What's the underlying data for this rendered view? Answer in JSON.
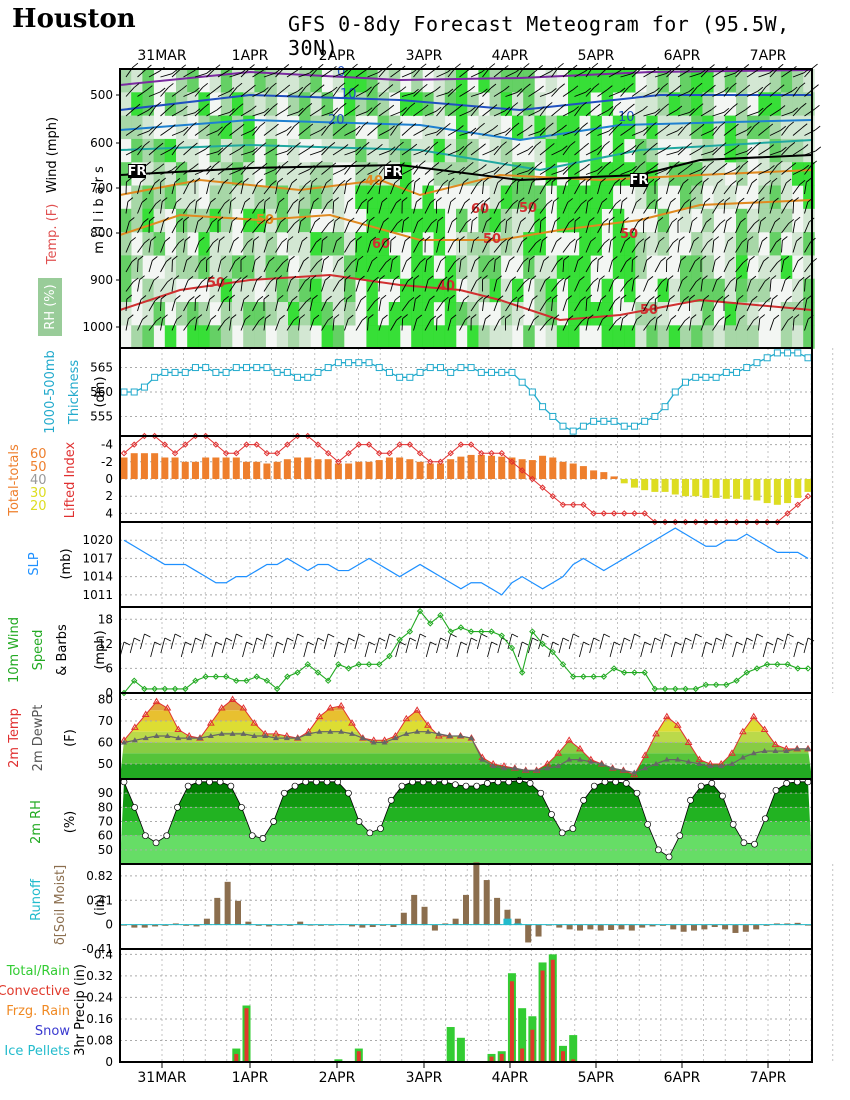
{
  "header": {
    "city": "Houston",
    "title": "GFS 0-8dy Forecast Meteogram for (95.5W, 30N)"
  },
  "dates": [
    "31MAR",
    "1APR",
    "2APR",
    "3APR",
    "4APR",
    "5APR",
    "6APR",
    "7APR"
  ],
  "panels": {
    "upper": {
      "ylabel": "millibars",
      "label_wind": "Wind (mph)",
      "label_temp": "Temp. (F)",
      "label_rh": "RH (%)",
      "yticks": [
        "500",
        "600",
        "700",
        "800",
        "900",
        "1000"
      ],
      "wind_contours": [
        "0",
        "10",
        "20",
        "10"
      ],
      "temp_contours": [
        "40",
        "50",
        "60",
        "50",
        "50",
        "40",
        "50",
        "60",
        "50",
        "50"
      ],
      "fr_marks": [
        "FR",
        "FR",
        "FR"
      ]
    },
    "thickness": {
      "label1": "1000-500mb",
      "label2": "Thickness",
      "unit": "(dm)",
      "yticks": [
        "565",
        "560",
        "555"
      ]
    },
    "stability": {
      "label_tt": "Total-totals",
      "label_li": "Lifted Index",
      "tt_legend": [
        "60",
        "50",
        "40",
        "30",
        "20"
      ],
      "yticks": [
        "-4",
        "-2",
        "0",
        "2",
        "4"
      ]
    },
    "slp": {
      "label": "SLP",
      "unit": "(mb)",
      "yticks": [
        "1020",
        "1017",
        "1014",
        "1011"
      ]
    },
    "wind10m": {
      "label1": "10m Wind",
      "label2": "Speed",
      "label3": "& Barbs",
      "unit": "(mph)",
      "yticks": [
        "18",
        "12",
        "6",
        "0"
      ]
    },
    "temp2m": {
      "label1": "2m Temp",
      "label2": "2m DewPt",
      "unit": "(F)",
      "yticks": [
        "80",
        "70",
        "60",
        "50"
      ]
    },
    "rh2m": {
      "label": "2m RH",
      "unit": "(%)",
      "yticks": [
        "90",
        "80",
        "70",
        "60",
        "50"
      ]
    },
    "runoff": {
      "label1": "Runoff",
      "label2": "δ[Soil Moist]",
      "unit": "(in)",
      "yticks": [
        "0.82",
        "0.41",
        "0",
        "-0.41"
      ]
    },
    "precip": {
      "legend": [
        "Total/Rain",
        "Convective",
        "Frzg. Rain",
        "Snow",
        "Ice Pellets"
      ],
      "ylabel": "3hr Precip (in)",
      "yticks": [
        "0.4",
        "0.32",
        "0.24",
        "0.16",
        "0.08",
        "0"
      ]
    }
  },
  "colors": {
    "rain": "#33cc33",
    "convective": "#e0392b",
    "frzg": "#f08a24",
    "snow": "#3a3ad0",
    "ice": "#22bbcc",
    "thickness": "#22aacc",
    "slp": "#1e90ff",
    "wind": "#22aa22",
    "temp": "#e03030",
    "dew": "#666666",
    "tt_orange": "#ee7f2d",
    "tt_yellow": "#dddd22",
    "runoff": "#22bbcc",
    "soil": "#8b6e4e"
  },
  "chart_data": [
    {
      "type": "line",
      "title": "1000-500mb Thickness",
      "ylabel": "(dm)",
      "ylim": [
        551,
        569
      ],
      "series": [
        {
          "name": "Thickness",
          "values": [
            560,
            560,
            561,
            563,
            564,
            564,
            564,
            565,
            565,
            564,
            564,
            565,
            565,
            565,
            565,
            564,
            564,
            563,
            563,
            564,
            565,
            566,
            566,
            566,
            566,
            565,
            564,
            563,
            563,
            564,
            565,
            565,
            564,
            565,
            565,
            564,
            564,
            564,
            564,
            562,
            560,
            557,
            555,
            553,
            552,
            553,
            554,
            554,
            554,
            553,
            553,
            554,
            555,
            557,
            560,
            562,
            563,
            563,
            563,
            564,
            564,
            565,
            566,
            567,
            568,
            568,
            568,
            567
          ]
        }
      ]
    },
    {
      "type": "bar",
      "title": "Lifted Index / Total-totals",
      "ylim": [
        5,
        -5
      ],
      "series": [
        {
          "name": "Lifted Index",
          "values": [
            -3,
            -4,
            -5,
            -5,
            -4,
            -3,
            -4,
            -5,
            -5,
            -4,
            -3,
            -3,
            -4,
            -4,
            -3,
            -3,
            -4,
            -5,
            -5,
            -4,
            -3,
            -2,
            -3,
            -4,
            -4,
            -3,
            -3,
            -4,
            -4,
            -3,
            -2,
            -2,
            -3,
            -4,
            -4,
            -3,
            -3,
            -3,
            -2,
            -1,
            0,
            1,
            2,
            3,
            3,
            3,
            4,
            4,
            4,
            4,
            4,
            4,
            5,
            5,
            5,
            5,
            5,
            5,
            5,
            5,
            5,
            5,
            5,
            5,
            5,
            4,
            3,
            2
          ]
        },
        {
          "name": "Total-totals bars",
          "values": [
            -2.5,
            -3,
            -3,
            -3,
            -2.5,
            -2.5,
            -2,
            -2,
            -2.5,
            -2.5,
            -2.5,
            -2.5,
            -2,
            -2,
            -1.8,
            -2,
            -2.3,
            -2.5,
            -2.5,
            -2.3,
            -2.3,
            -1.8,
            -1.8,
            -2,
            -2,
            -2.2,
            -2.5,
            -2.5,
            -2.3,
            -2,
            -1.8,
            -1.8,
            -2.3,
            -2.6,
            -2.8,
            -2.8,
            -2.7,
            -2.6,
            -2.5,
            -2.3,
            -2.2,
            -2.7,
            -2.5,
            -2,
            -1.8,
            -1.5,
            -1,
            -0.8,
            -0.3,
            0.5,
            1,
            1.3,
            1.5,
            1.5,
            1.8,
            2,
            2,
            2.2,
            2.2,
            2.3,
            2.3,
            2.4,
            2.5,
            2.8,
            3,
            2.8,
            2.2,
            1.5
          ]
        }
      ]
    },
    {
      "type": "line",
      "title": "SLP",
      "ylabel": "(mb)",
      "ylim": [
        1009,
        1023
      ],
      "series": [
        {
          "name": "SLP",
          "values": [
            1020,
            1019,
            1018,
            1017,
            1016,
            1016,
            1016,
            1015,
            1014,
            1013,
            1013,
            1014,
            1014,
            1015,
            1016,
            1016,
            1017,
            1016,
            1015,
            1016,
            1016,
            1015,
            1015,
            1016,
            1017,
            1016,
            1015,
            1014,
            1015,
            1016,
            1015,
            1014,
            1013,
            1012,
            1013,
            1013,
            1012,
            1011,
            1013,
            1014,
            1013,
            1012,
            1013,
            1014,
            1016,
            1017,
            1016,
            1015,
            1016,
            1017,
            1018,
            1019,
            1020,
            1021,
            1022,
            1021,
            1020,
            1019,
            1019,
            1020,
            1020,
            1021,
            1020,
            1019,
            1018,
            1018,
            1018,
            1017
          ]
        }
      ]
    },
    {
      "type": "line",
      "title": "10m Wind Speed",
      "ylabel": "(mph)",
      "ylim": [
        0,
        21
      ],
      "series": [
        {
          "name": "10m Wind",
          "values": [
            0,
            3,
            1,
            1,
            1,
            1,
            1,
            3,
            4,
            4,
            4,
            3,
            3,
            4,
            3,
            1,
            4,
            5,
            7,
            5,
            3,
            7,
            6,
            7,
            7,
            7,
            9,
            13,
            15,
            20,
            17,
            19,
            15,
            16,
            15,
            15,
            15,
            14,
            11,
            5,
            15,
            12,
            10,
            7,
            4,
            4,
            4,
            4,
            6,
            5,
            5,
            5,
            1,
            1,
            1,
            1,
            1,
            2,
            2,
            2,
            3,
            5,
            6,
            7,
            7,
            7,
            6,
            6
          ]
        }
      ]
    },
    {
      "type": "area",
      "title": "2m Temp / 2m DewPt",
      "ylabel": "(F)",
      "ylim": [
        43,
        83
      ],
      "series": [
        {
          "name": "2m Temp",
          "values": [
            61,
            67,
            73,
            79,
            76,
            66,
            63,
            62,
            69,
            76,
            80,
            76,
            69,
            64,
            64,
            63,
            62,
            65,
            72,
            76,
            77,
            69,
            62,
            61,
            61,
            63,
            71,
            75,
            68,
            63,
            63,
            63,
            62,
            53,
            50,
            49,
            48,
            47,
            47,
            50,
            55,
            61,
            57,
            52,
            50,
            48,
            47,
            45,
            54,
            64,
            72,
            68,
            60,
            52,
            50,
            50,
            55,
            65,
            72,
            66,
            59,
            57,
            57,
            57
          ]
        },
        {
          "name": "2m DewPt",
          "values": [
            60,
            61,
            62,
            63,
            63,
            62,
            62,
            62,
            63,
            64,
            64,
            64,
            63,
            63,
            62,
            62,
            62,
            64,
            65,
            65,
            65,
            64,
            62,
            60,
            60,
            62,
            64,
            65,
            65,
            64,
            63,
            63,
            62,
            52,
            49,
            48,
            48,
            47,
            47,
            48,
            49,
            52,
            52,
            51,
            50,
            48,
            47,
            46,
            48,
            50,
            52,
            52,
            51,
            50,
            49,
            49,
            50,
            53,
            55,
            56,
            56,
            56,
            57,
            57
          ]
        }
      ]
    },
    {
      "type": "area",
      "title": "2m RH",
      "ylabel": "(%)",
      "ylim": [
        40,
        100
      ],
      "series": [
        {
          "name": "2m RH",
          "values": [
            98,
            80,
            60,
            55,
            60,
            80,
            95,
            98,
            98,
            98,
            95,
            80,
            60,
            58,
            70,
            90,
            95,
            98,
            98,
            98,
            98,
            90,
            70,
            62,
            65,
            85,
            95,
            98,
            98,
            98,
            98,
            96,
            95,
            95,
            97,
            98,
            98,
            99,
            97,
            90,
            75,
            62,
            65,
            85,
            95,
            98,
            98,
            97,
            90,
            68,
            50,
            45,
            60,
            85,
            95,
            97,
            88,
            68,
            55,
            54,
            72,
            92,
            97,
            98,
            98
          ]
        }
      ]
    },
    {
      "type": "bar",
      "title": "Runoff / Soil Moist",
      "ylabel": "(in)",
      "ylim": [
        -0.41,
        1.02
      ],
      "series": [
        {
          "name": "Soil Moist",
          "values": [
            0,
            -0.05,
            -0.05,
            -0.03,
            -0.02,
            0.02,
            -0.02,
            -0.03,
            0.1,
            0.45,
            0.72,
            0.4,
            0.05,
            -0.02,
            -0.03,
            0,
            -0.02,
            0.05,
            0,
            -0.02,
            -0.01,
            0.01,
            -0.03,
            -0.05,
            -0.04,
            -0.02,
            -0.04,
            0.2,
            0.5,
            0.3,
            -0.1,
            0.02,
            0.1,
            0.5,
            1.05,
            0.75,
            0.45,
            0.25,
            0.1,
            -0.3,
            -0.2,
            0,
            -0.05,
            -0.08,
            -0.1,
            -0.08,
            -0.1,
            -0.09,
            -0.08,
            -0.1,
            -0.05,
            -0.03,
            -0.02,
            -0.08,
            -0.12,
            -0.1,
            -0.08,
            -0.04,
            -0.08,
            -0.14,
            -0.12,
            -0.08,
            -0.02,
            0.02,
            0.02,
            0.03,
            0
          ]
        },
        {
          "name": "Runoff",
          "values": [
            0,
            0,
            0,
            0,
            0,
            0,
            0,
            0,
            0,
            0,
            0,
            0,
            0,
            0,
            0,
            0,
            0,
            0,
            0,
            0,
            0,
            0,
            0,
            0,
            0,
            0,
            0,
            0,
            0,
            0,
            0,
            0,
            0,
            0,
            0,
            0,
            0,
            0.1,
            0.02,
            0,
            0,
            0,
            0,
            0,
            0,
            0,
            0,
            0,
            0,
            0,
            0,
            0,
            0,
            0,
            0,
            0,
            0,
            0,
            0,
            0,
            0,
            0,
            0,
            0,
            0,
            0,
            0
          ]
        }
      ]
    },
    {
      "type": "bar",
      "title": "3hr Precip",
      "ylabel": "3hr Precip (in)",
      "ylim": [
        0,
        0.42
      ],
      "series": [
        {
          "name": "Total/Rain",
          "values": [
            0,
            0,
            0,
            0,
            0,
            0,
            0,
            0,
            0,
            0,
            0,
            0.05,
            0.21,
            0,
            0,
            0,
            0,
            0,
            0,
            0,
            0,
            0.01,
            0,
            0.05,
            0,
            0,
            0,
            0,
            0,
            0,
            0,
            0,
            0.13,
            0.09,
            0,
            0,
            0.03,
            0.04,
            0.33,
            0.2,
            0.17,
            0.37,
            0.4,
            0.06,
            0.1,
            0,
            0,
            0,
            0,
            0,
            0,
            0,
            0,
            0,
            0,
            0,
            0,
            0,
            0,
            0,
            0,
            0,
            0,
            0,
            0,
            0,
            0,
            0
          ]
        },
        {
          "name": "Convective",
          "values": [
            0,
            0,
            0,
            0,
            0,
            0,
            0,
            0,
            0,
            0,
            0,
            0.03,
            0.2,
            0,
            0,
            0,
            0,
            0,
            0,
            0,
            0,
            0,
            0,
            0.04,
            0,
            0,
            0,
            0,
            0,
            0,
            0,
            0,
            0,
            0,
            0,
            0,
            0.02,
            0.03,
            0.3,
            0.05,
            0.12,
            0.34,
            0.38,
            0.04,
            0.01,
            0,
            0,
            0,
            0,
            0,
            0,
            0,
            0,
            0,
            0,
            0,
            0,
            0,
            0,
            0,
            0,
            0,
            0,
            0,
            0,
            0,
            0,
            0
          ]
        }
      ]
    }
  ]
}
